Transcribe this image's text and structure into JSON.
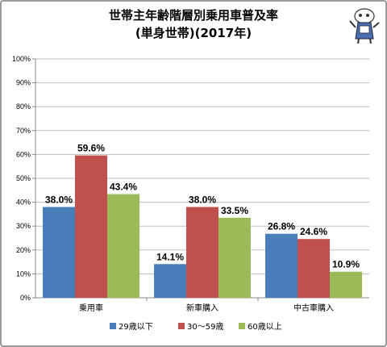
{
  "chart_data": {
    "type": "bar",
    "title_line1": "世帯主年齢階層別乗用車普及率",
    "title_line2": "(単身世帯)(2017年)",
    "categories": [
      "乗用車",
      "新車購入",
      "中古車購入"
    ],
    "series": [
      {
        "name": "29歳以下",
        "values": [
          38.0,
          14.1,
          26.8
        ],
        "labels": [
          "38.0%",
          "14.1%",
          "26.8%"
        ],
        "color": "#4a7ebb"
      },
      {
        "name": "30～59歳",
        "values": [
          59.6,
          38.0,
          24.6
        ],
        "labels": [
          "59.6%",
          "38.0%",
          "24.6%"
        ],
        "color": "#c0504d"
      },
      {
        "name": "60歳以上",
        "values": [
          43.4,
          33.5,
          10.9
        ],
        "labels": [
          "43.4%",
          "33.5%",
          "10.9%"
        ],
        "color": "#9bbb59"
      }
    ],
    "ylim": [
      0,
      100
    ],
    "yticks": [
      "0%",
      "10%",
      "20%",
      "30%",
      "40%",
      "50%",
      "60%",
      "70%",
      "80%",
      "90%",
      "100%"
    ],
    "grid": true,
    "legend_position": "bottom"
  },
  "mascot_icon": "mascot-character-icon"
}
